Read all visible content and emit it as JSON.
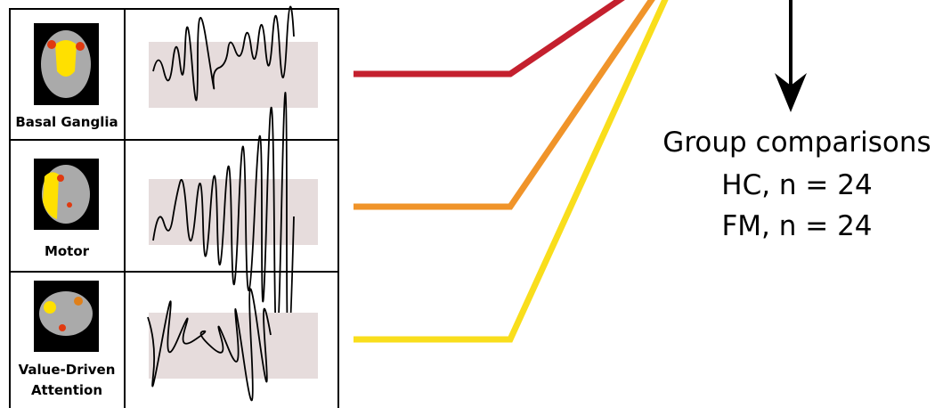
{
  "networks": [
    {
      "label": "Basal Ganglia"
    },
    {
      "label": "Motor"
    },
    {
      "label": "Value-Driven Attention",
      "lines": [
        "Value-Driven",
        "Attention"
      ]
    }
  ],
  "group": {
    "title": "Group comparisons",
    "lines": [
      "HC, n = 24",
      "FM, n = 24"
    ]
  }
}
